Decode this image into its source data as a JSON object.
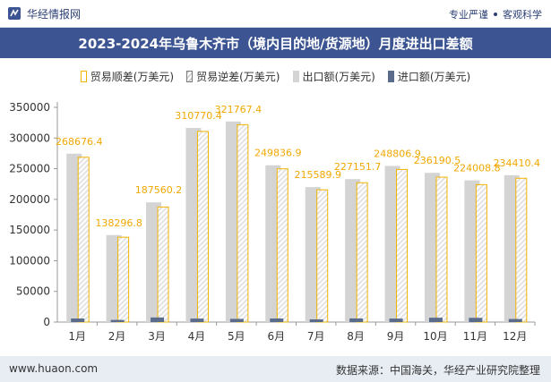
{
  "header": {
    "brand_name": "华经情报网",
    "tagline_left": "专业严谨",
    "tagline_right": "客观科学"
  },
  "title": "2023-2024年乌鲁木齐市（境内目的地/货源地）月度进出口差额",
  "footer": {
    "url": "www.huaon.com",
    "source": "数据来源：中国海关，华经产业研究院整理"
  },
  "colors": {
    "title_bg": "#3c5592",
    "export": "#d4d4d4",
    "import": "#5a6b8c",
    "surplus": "#f0b400",
    "label": "#f0a800"
  },
  "chart_data": {
    "type": "bar",
    "categories": [
      "1月",
      "2月",
      "3月",
      "4月",
      "5月",
      "6月",
      "7月",
      "8月",
      "9月",
      "10月",
      "11月",
      "12月"
    ],
    "ylim": [
      0,
      350000
    ],
    "yticks": [
      0,
      50000,
      100000,
      150000,
      200000,
      250000,
      300000,
      350000
    ],
    "grid": false,
    "legend_position": "top",
    "series": [
      {
        "name": "贸易顺差(万美元)",
        "values": [
          268676.4,
          138296.8,
          187560.2,
          310770.4,
          321767.4,
          249836.9,
          215589.9,
          227151.7,
          248806.9,
          236190.5,
          224008.8,
          234410.4
        ]
      },
      {
        "name": "贸易逆差(万美元)",
        "values": [
          0,
          0,
          0,
          0,
          0,
          0,
          0,
          0,
          0,
          0,
          0,
          0
        ]
      },
      {
        "name": "出口额(万美元)",
        "values": [
          274500,
          141800,
          195100,
          316500,
          327000,
          255600,
          220000,
          233000,
          254500,
          243300,
          230900,
          239400
        ]
      },
      {
        "name": "进口额(万美元)",
        "values": [
          5800,
          3500,
          7500,
          5700,
          5200,
          5800,
          4400,
          5900,
          5700,
          7100,
          6900,
          5000
        ]
      }
    ],
    "data_labels": [
      "268676.4",
      "138296.8",
      "187560.2",
      "310770.4",
      "321767.4",
      "249836.9",
      "215589.9",
      "227151.7",
      "248806.9",
      "236190.5",
      "224008.8",
      "234410.4"
    ]
  }
}
